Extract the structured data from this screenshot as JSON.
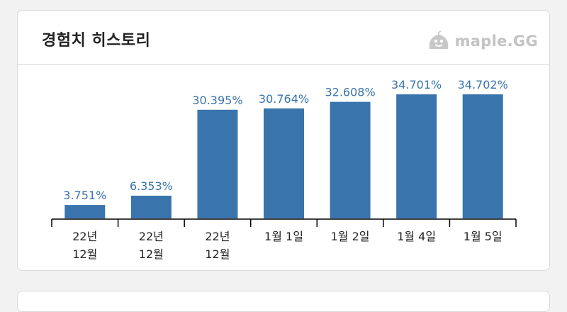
{
  "header": {
    "title": "경험치 히스토리",
    "brand": {
      "text": "maple.GG",
      "icon": "slime-mascot-icon",
      "color": "#c3c3c3"
    }
  },
  "chart_data": {
    "type": "bar",
    "categories": [
      [
        "22년",
        "12월"
      ],
      [
        "22년",
        "12월"
      ],
      [
        "22년",
        "12월"
      ],
      [
        "1월 1일"
      ],
      [
        "1월 2일"
      ],
      [
        "1월 4일"
      ],
      [
        "1월 5일"
      ]
    ],
    "values": [
      3.751,
      6.353,
      30.395,
      30.764,
      32.608,
      34.701,
      34.702
    ],
    "labels": [
      "3.751%",
      "6.353%",
      "30.395%",
      "30.764%",
      "32.608%",
      "34.701%",
      "34.702%"
    ],
    "unit": "%",
    "ylim": [
      0,
      36.7
    ],
    "bar_color": "#3a74ad",
    "label_color": "#3a74ad",
    "grid": false
  }
}
